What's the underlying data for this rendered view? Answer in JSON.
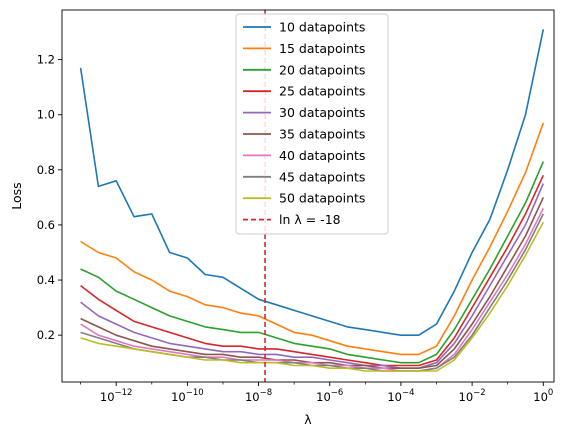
{
  "chart_data": {
    "type": "line",
    "xlabel": "λ",
    "ylabel": "Loss",
    "x_scale": "log",
    "xlim": [
      3e-14,
      2
    ],
    "ylim": [
      0.03,
      1.38
    ],
    "grid": false,
    "legend_position": "top-center",
    "x_ticks": [
      {
        "value": 1e-12,
        "base": "10",
        "exp": "−12"
      },
      {
        "value": 1e-10,
        "base": "10",
        "exp": "−10"
      },
      {
        "value": 1e-08,
        "base": "10",
        "exp": "−8"
      },
      {
        "value": 1e-06,
        "base": "10",
        "exp": "−6"
      },
      {
        "value": 0.0001,
        "base": "10",
        "exp": "−4"
      },
      {
        "value": 0.01,
        "base": "10",
        "exp": "−2"
      },
      {
        "value": 1,
        "base": "10",
        "exp": "0"
      }
    ],
    "y_ticks": [
      "0.2",
      "0.4",
      "0.6",
      "0.8",
      "1.0",
      "1.2"
    ],
    "vline": {
      "x": 1.523e-08,
      "name": "ln λ = -18",
      "color": "#d62728"
    },
    "x_log10": [
      -13,
      -12.5,
      -12,
      -11.5,
      -11,
      -10.5,
      -10,
      -9.5,
      -9,
      -8.5,
      -8,
      -7.5,
      -7,
      -6.5,
      -6,
      -5.5,
      -5,
      -4.5,
      -4,
      -3.5,
      -3,
      -2.5,
      -2,
      -1.5,
      -1,
      -0.5,
      0
    ],
    "series": [
      {
        "name": "10 datapoints",
        "color": "#1f77b4",
        "values": [
          1.17,
          0.74,
          0.76,
          0.63,
          0.64,
          0.5,
          0.48,
          0.42,
          0.41,
          0.37,
          0.33,
          0.31,
          0.29,
          0.27,
          0.25,
          0.23,
          0.22,
          0.21,
          0.2,
          0.2,
          0.24,
          0.36,
          0.5,
          0.62,
          0.8,
          1.0,
          1.31
        ]
      },
      {
        "name": "15 datapoints",
        "color": "#ff7f0e",
        "values": [
          0.54,
          0.5,
          0.48,
          0.43,
          0.4,
          0.36,
          0.34,
          0.31,
          0.3,
          0.28,
          0.27,
          0.24,
          0.21,
          0.2,
          0.18,
          0.16,
          0.15,
          0.14,
          0.13,
          0.13,
          0.16,
          0.27,
          0.4,
          0.52,
          0.65,
          0.79,
          0.97
        ]
      },
      {
        "name": "20 datapoints",
        "color": "#2ca02c",
        "values": [
          0.44,
          0.41,
          0.36,
          0.33,
          0.3,
          0.27,
          0.25,
          0.23,
          0.22,
          0.21,
          0.21,
          0.19,
          0.17,
          0.16,
          0.15,
          0.13,
          0.12,
          0.11,
          0.1,
          0.1,
          0.13,
          0.22,
          0.33,
          0.44,
          0.56,
          0.68,
          0.83
        ]
      },
      {
        "name": "25 datapoints",
        "color": "#d62728",
        "values": [
          0.38,
          0.33,
          0.29,
          0.25,
          0.23,
          0.21,
          0.19,
          0.17,
          0.16,
          0.16,
          0.15,
          0.15,
          0.14,
          0.13,
          0.12,
          0.11,
          0.1,
          0.09,
          0.09,
          0.09,
          0.11,
          0.19,
          0.3,
          0.41,
          0.52,
          0.64,
          0.78
        ]
      },
      {
        "name": "30 datapoints",
        "color": "#9467bd",
        "values": [
          0.32,
          0.27,
          0.24,
          0.21,
          0.19,
          0.17,
          0.16,
          0.15,
          0.14,
          0.14,
          0.13,
          0.13,
          0.12,
          0.12,
          0.11,
          0.1,
          0.09,
          0.09,
          0.08,
          0.08,
          0.1,
          0.17,
          0.27,
          0.38,
          0.49,
          0.6,
          0.75
        ]
      },
      {
        "name": "35 datapoints",
        "color": "#8c564b",
        "values": [
          0.26,
          0.23,
          0.2,
          0.18,
          0.16,
          0.15,
          0.14,
          0.13,
          0.13,
          0.12,
          0.12,
          0.11,
          0.11,
          0.1,
          0.1,
          0.09,
          0.09,
          0.08,
          0.08,
          0.08,
          0.09,
          0.15,
          0.24,
          0.34,
          0.45,
          0.56,
          0.7
        ]
      },
      {
        "name": "40 datapoints",
        "color": "#e377c2",
        "values": [
          0.24,
          0.2,
          0.18,
          0.16,
          0.15,
          0.14,
          0.13,
          0.12,
          0.12,
          0.11,
          0.11,
          0.11,
          0.1,
          0.1,
          0.09,
          0.09,
          0.08,
          0.08,
          0.07,
          0.07,
          0.08,
          0.13,
          0.22,
          0.32,
          0.42,
          0.53,
          0.66
        ]
      },
      {
        "name": "45 datapoints",
        "color": "#7f7f7f",
        "values": [
          0.21,
          0.19,
          0.17,
          0.15,
          0.14,
          0.13,
          0.12,
          0.12,
          0.11,
          0.11,
          0.1,
          0.1,
          0.1,
          0.09,
          0.09,
          0.08,
          0.08,
          0.07,
          0.07,
          0.07,
          0.08,
          0.12,
          0.2,
          0.3,
          0.4,
          0.51,
          0.64
        ]
      },
      {
        "name": "50 datapoints",
        "color": "#bcbd22",
        "values": [
          0.19,
          0.17,
          0.16,
          0.15,
          0.14,
          0.13,
          0.12,
          0.11,
          0.11,
          0.1,
          0.1,
          0.1,
          0.09,
          0.09,
          0.08,
          0.08,
          0.07,
          0.07,
          0.07,
          0.07,
          0.07,
          0.11,
          0.19,
          0.28,
          0.38,
          0.49,
          0.61
        ]
      }
    ]
  }
}
